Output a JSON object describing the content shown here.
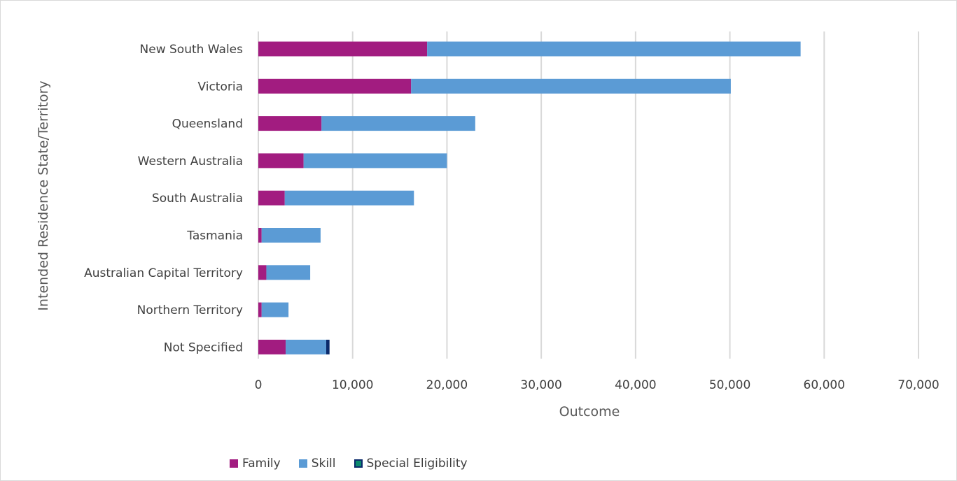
{
  "chart_data": {
    "type": "bar",
    "orientation": "horizontal",
    "stacked": true,
    "title": "",
    "xlabel": "Outcome",
    "ylabel": "Intended Residence State/Territory",
    "xlim": [
      0,
      70000
    ],
    "x_ticks": [
      0,
      10000,
      20000,
      30000,
      40000,
      50000,
      60000,
      70000
    ],
    "x_tick_labels": [
      "0",
      "10,000",
      "20,000",
      "30,000",
      "40,000",
      "50,000",
      "60,000",
      "70,000"
    ],
    "grid": "vertical",
    "legend_position": "bottom-left",
    "categories": [
      "New South Wales",
      "Victoria",
      "Queensland",
      "Western Australia",
      "South Australia",
      "Tasmania",
      "Australian Capital Territory",
      "Northern Territory",
      "Not Specified"
    ],
    "series": [
      {
        "name": "Family",
        "color": "#a21c80",
        "values": [
          17900,
          16200,
          6700,
          4800,
          2800,
          350,
          850,
          350,
          2900
        ]
      },
      {
        "name": "Skill",
        "color": "#5b9bd5",
        "values": [
          39600,
          33900,
          16300,
          15200,
          13700,
          6250,
          4650,
          2850,
          4300
        ]
      },
      {
        "name": "Special Eligibility",
        "color": "#0b2a6b",
        "values": [
          0,
          0,
          0,
          0,
          0,
          0,
          0,
          0,
          350
        ]
      }
    ]
  }
}
